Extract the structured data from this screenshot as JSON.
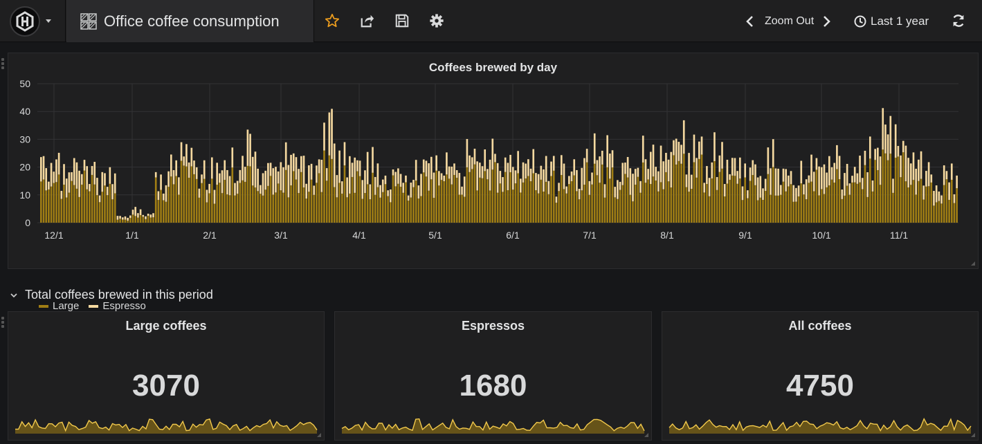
{
  "header": {
    "dashboard_title": "Office coffee consumption",
    "zoom_out_label": "Zoom Out",
    "time_range_label": "Last 1 year",
    "icons": [
      "grafana-logo-icon",
      "dashboard-grid-icon",
      "star-icon",
      "share-icon",
      "save-icon",
      "settings-gear-icon",
      "chevron-left-icon",
      "chevron-right-icon",
      "clock-icon",
      "refresh-icon"
    ],
    "colors": {
      "star": "#eb9c1e",
      "large": "#a07e14",
      "espresso": "#f5d9a0"
    }
  },
  "row": {
    "title": "Total coffees brewed in this period"
  },
  "stats": [
    {
      "title": "Large coffees",
      "value": "3070"
    },
    {
      "title": "Espressos",
      "value": "1680"
    },
    {
      "title": "All coffees",
      "value": "4750"
    }
  ],
  "chart_data": {
    "type": "bar",
    "stacked": true,
    "title": "Coffees brewed by day",
    "ylim": [
      0,
      50
    ],
    "yticks": [
      0,
      10,
      20,
      30,
      40,
      50
    ],
    "xticks": [
      "12/1",
      "1/1",
      "2/1",
      "3/1",
      "4/1",
      "5/1",
      "6/1",
      "7/1",
      "8/1",
      "9/1",
      "10/1",
      "11/1"
    ],
    "legend_position": "bottom-left",
    "grid": true,
    "series": [
      {
        "name": "Large",
        "color": "#a07e14"
      },
      {
        "name": "Espresso",
        "color": "#f5d9a0"
      }
    ],
    "weekly_totals": [
      [
        11,
        6
      ],
      [
        12,
        5
      ],
      [
        13,
        7
      ],
      [
        14,
        6
      ],
      [
        12,
        5
      ],
      [
        10,
        5
      ],
      [
        1,
        1
      ],
      [
        3,
        2
      ],
      [
        2,
        1
      ],
      [
        12,
        4
      ],
      [
        13,
        5
      ],
      [
        16,
        6
      ],
      [
        14,
        5
      ],
      [
        12,
        5
      ],
      [
        13,
        6
      ],
      [
        15,
        6
      ],
      [
        16,
        8
      ],
      [
        14,
        7
      ],
      [
        13,
        7
      ],
      [
        15,
        7
      ],
      [
        14,
        7
      ],
      [
        13,
        6
      ],
      [
        18,
        11
      ],
      [
        16,
        11
      ],
      [
        15,
        8
      ],
      [
        14,
        7
      ],
      [
        13,
        6
      ],
      [
        12,
        4
      ],
      [
        11,
        4
      ],
      [
        12,
        5
      ],
      [
        14,
        6
      ],
      [
        13,
        5
      ],
      [
        12,
        5
      ],
      [
        14,
        6
      ],
      [
        15,
        7
      ],
      [
        16,
        7
      ],
      [
        15,
        6
      ],
      [
        14,
        6
      ],
      [
        13,
        6
      ],
      [
        14,
        6
      ],
      [
        13,
        5
      ],
      [
        14,
        6
      ],
      [
        15,
        6
      ],
      [
        16,
        7
      ],
      [
        15,
        7
      ],
      [
        14,
        6
      ],
      [
        13,
        6
      ],
      [
        15,
        7
      ],
      [
        16,
        8
      ],
      [
        17,
        8
      ],
      [
        18,
        9
      ],
      [
        17,
        8
      ],
      [
        16,
        7
      ],
      [
        14,
        6
      ],
      [
        13,
        5
      ],
      [
        12,
        5
      ],
      [
        13,
        5
      ],
      [
        14,
        6
      ],
      [
        13,
        6
      ],
      [
        12,
        5
      ],
      [
        14,
        6
      ],
      [
        15,
        7
      ],
      [
        14,
        6
      ],
      [
        13,
        6
      ],
      [
        15,
        6
      ],
      [
        18,
        8
      ],
      [
        19,
        9
      ],
      [
        18,
        8
      ],
      [
        15,
        7
      ],
      [
        12,
        6
      ],
      [
        11,
        5
      ],
      [
        12,
        5
      ]
    ]
  }
}
